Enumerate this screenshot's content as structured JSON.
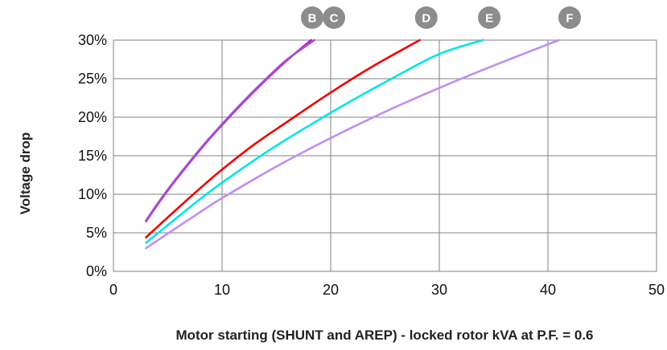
{
  "chart_data": {
    "type": "line",
    "title": "",
    "xlabel": "Motor starting (SHUNT and AREP) - locked rotor kVA at P.F. = 0.6",
    "ylabel": "Voltage drop",
    "xlim": [
      0,
      50
    ],
    "ylim": [
      0,
      30
    ],
    "x_ticks": [
      "0",
      "10",
      "20",
      "30",
      "40",
      "50"
    ],
    "y_ticks": [
      "0%",
      "5%",
      "10%",
      "15%",
      "20%",
      "25%",
      "30%"
    ],
    "grid": true,
    "series": [
      {
        "name": "B",
        "color": "#dd00dd",
        "x": [
          3,
          5,
          8,
          10,
          12,
          14,
          16,
          18.2
        ],
        "y": [
          6.5,
          10.5,
          15.8,
          19.0,
          22.0,
          24.8,
          27.4,
          30.0
        ]
      },
      {
        "name": "C",
        "color": "#9955cc",
        "x": [
          3,
          5,
          8,
          10,
          12,
          14,
          16,
          18.5
        ],
        "y": [
          6.6,
          10.6,
          15.9,
          19.1,
          22.1,
          24.9,
          27.5,
          30.0
        ]
      },
      {
        "name": "D",
        "color": "#ee0000",
        "x": [
          3,
          5,
          8,
          10,
          13,
          16,
          20,
          24,
          28.2
        ],
        "y": [
          4.4,
          7.0,
          10.8,
          13.2,
          16.5,
          19.4,
          23.2,
          26.7,
          30.0
        ]
      },
      {
        "name": "E",
        "color": "#00e5e5",
        "x": [
          3,
          5,
          8,
          10,
          14,
          18,
          22,
          26,
          30,
          34
        ],
        "y": [
          3.7,
          6.0,
          9.4,
          11.5,
          15.4,
          18.9,
          22.2,
          25.3,
          28.2,
          30.0
        ]
      },
      {
        "name": "F",
        "color": "#c08ef0",
        "x": [
          3,
          5,
          8,
          10,
          15,
          20,
          25,
          30,
          35,
          41
        ],
        "y": [
          3.0,
          4.9,
          7.7,
          9.5,
          13.6,
          17.3,
          20.7,
          23.8,
          26.7,
          30.0
        ]
      }
    ],
    "curve_labels": [
      {
        "text": "B",
        "x": 18.3
      },
      {
        "text": "C",
        "x": 20.3
      },
      {
        "text": "D",
        "x": 28.8
      },
      {
        "text": "E",
        "x": 34.6
      },
      {
        "text": "F",
        "x": 42.0
      }
    ]
  }
}
